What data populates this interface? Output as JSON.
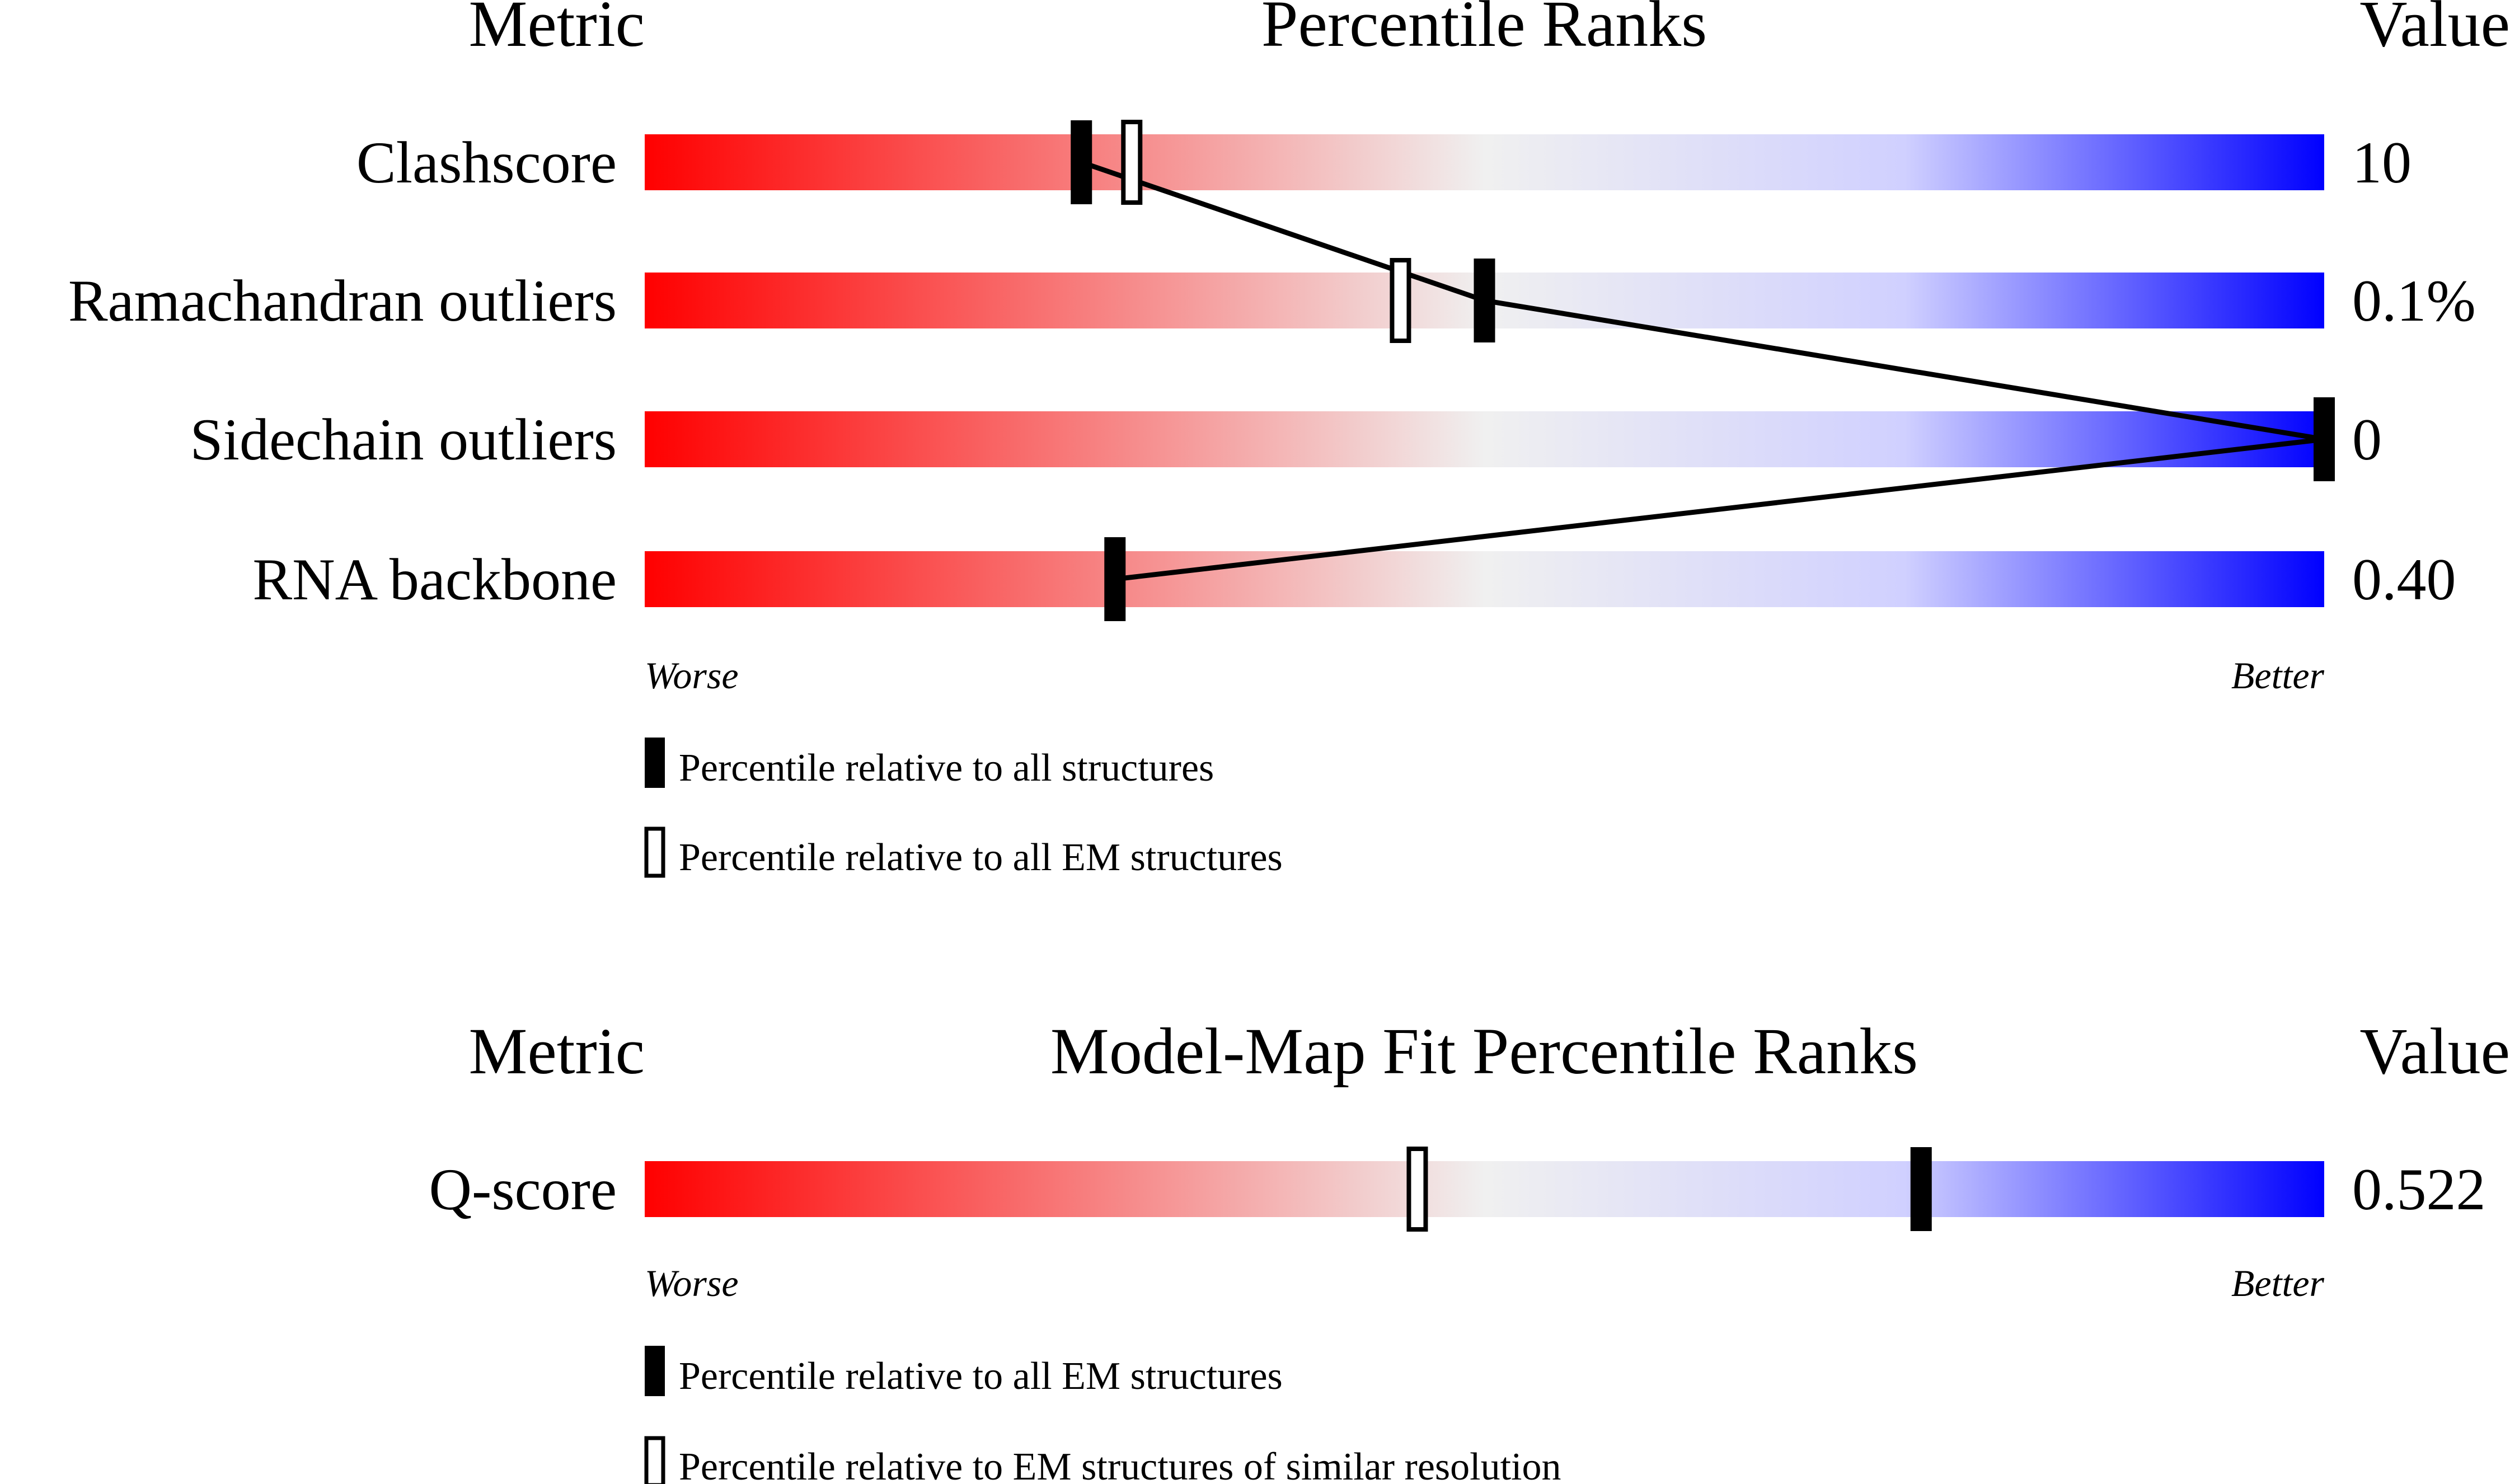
{
  "chart_data": [
    {
      "type": "bar",
      "title": "Percentile Ranks",
      "metric_header": "Metric",
      "value_header": "Value",
      "axis_end_labels": {
        "left": "Worse",
        "right": "Better"
      },
      "xlim": [
        0,
        100
      ],
      "connect_all_structure_markers": true,
      "categories": [
        "Clashscore",
        "Ramachandran outliers",
        "Sidechain outliers",
        "RNA backbone"
      ],
      "values_text": [
        "10",
        "0.1%",
        "0",
        "0.40"
      ],
      "series": [
        {
          "name": "Percentile relative to all structures",
          "marker": "filled",
          "values": [
            26,
            50,
            100,
            28
          ]
        },
        {
          "name": "Percentile relative to all EM structures",
          "marker": "open",
          "values": [
            29,
            45,
            null,
            null
          ]
        }
      ],
      "legend": [
        "Percentile relative to all structures",
        "Percentile relative to all EM structures"
      ],
      "gradient_colors": [
        "#ff0000",
        "#f0f0f0",
        "#d0d0ff",
        "#0000ff"
      ]
    },
    {
      "type": "bar",
      "title": "Model-Map Fit Percentile Ranks",
      "metric_header": "Metric",
      "value_header": "Value",
      "axis_end_labels": {
        "left": "Worse",
        "right": "Better"
      },
      "xlim": [
        0,
        100
      ],
      "connect_all_structure_markers": false,
      "categories": [
        "Q-score"
      ],
      "values_text": [
        "0.522"
      ],
      "series": [
        {
          "name": "Percentile relative to all EM structures",
          "marker": "filled",
          "values": [
            76
          ]
        },
        {
          "name": "Percentile relative to EM structures of similar resolution",
          "marker": "open",
          "values": [
            46
          ]
        }
      ],
      "legend": [
        "Percentile relative to all EM structures",
        "Percentile relative to EM structures of similar resolution"
      ],
      "gradient_colors": [
        "#ff0000",
        "#f0f0f0",
        "#d0d0ff",
        "#0000ff"
      ]
    }
  ]
}
